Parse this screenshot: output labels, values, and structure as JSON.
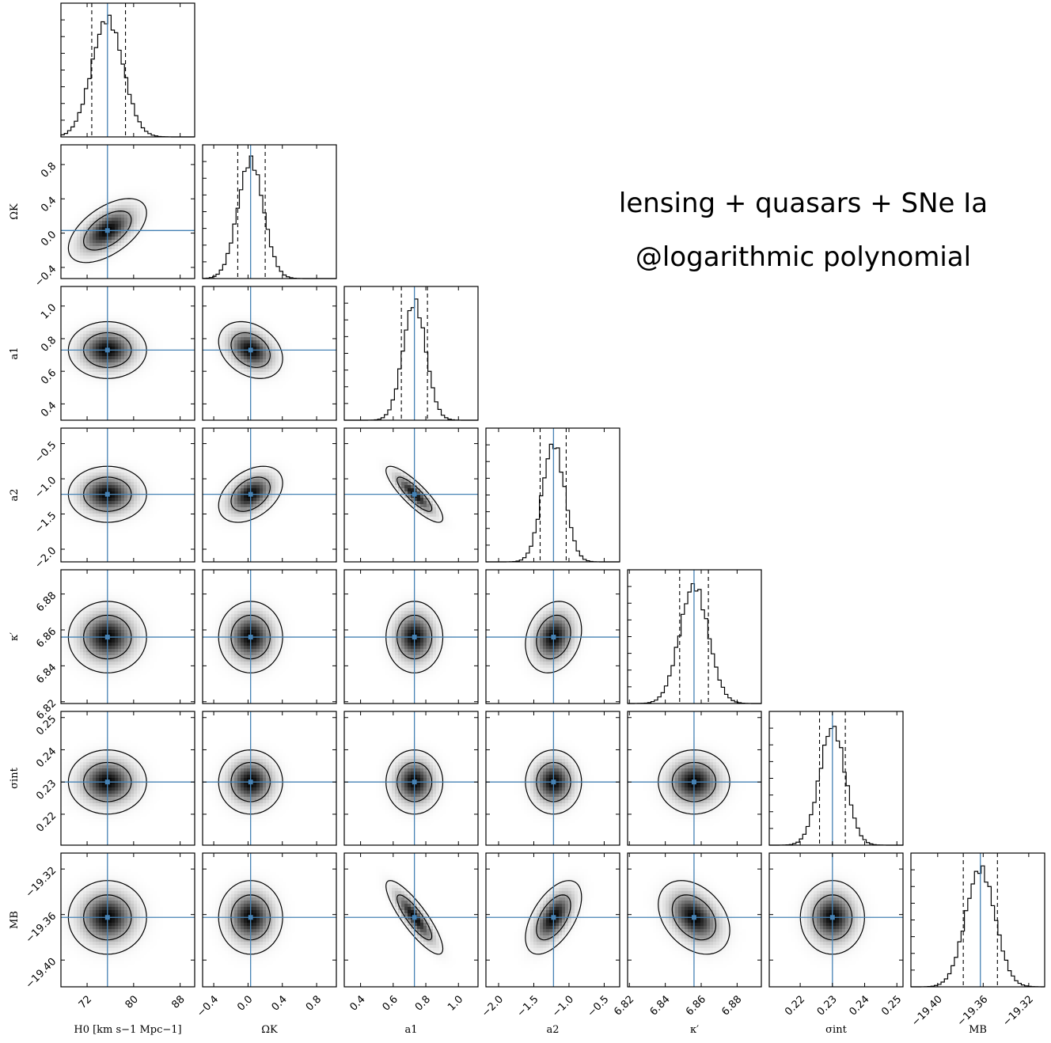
{
  "chart_data": {
    "type": "corner",
    "annotation": [
      "lensing + quasars + SNe Ia",
      "@logarithmic polynomial"
    ],
    "colors": {
      "truth": "#4682b4",
      "frame": "#000000",
      "density": "#000000"
    },
    "grid": false,
    "parameters": [
      {
        "label": "H0  [km  s−1  Mpc−1]",
        "range": [
          67.5,
          90.5
        ],
        "ticks": [
          72,
          80,
          88
        ],
        "tick_labels": [
          "72",
          "80",
          "88"
        ],
        "best_fit": 75.5,
        "sigma": 2.7,
        "ci": [
          72.8,
          78.6
        ]
      },
      {
        "label": "ΩK",
        "range": [
          -0.53,
          1.03
        ],
        "ticks": [
          -0.4,
          0.0,
          0.4,
          0.8
        ],
        "tick_labels": [
          "−0.4",
          "0.0",
          "0.4",
          "0.8"
        ],
        "best_fit": 0.03,
        "sigma": 0.15,
        "ci": [
          -0.12,
          0.2
        ]
      },
      {
        "label": "a1",
        "range": [
          0.3,
          1.12
        ],
        "ticks": [
          0.4,
          0.6,
          0.8,
          1.0
        ],
        "tick_labels": [
          "0.4",
          "0.6",
          "0.8",
          "1.0"
        ],
        "best_fit": 0.73,
        "sigma": 0.07,
        "ci": [
          0.65,
          0.81
        ]
      },
      {
        "label": "a2",
        "range": [
          -2.18,
          -0.28
        ],
        "ticks": [
          -2.0,
          -1.5,
          -1.0,
          -0.5
        ],
        "tick_labels": [
          "−2.0",
          "−1.5",
          "−1.0",
          "−0.5"
        ],
        "best_fit": -1.22,
        "sigma": 0.16,
        "ci": [
          -1.41,
          -1.04
        ]
      },
      {
        "label": "κ′",
        "range": [
          6.819,
          6.8935
        ],
        "ticks": [
          6.82,
          6.84,
          6.86,
          6.88
        ],
        "tick_labels": [
          "6.82",
          "6.84",
          "6.86",
          "6.88"
        ],
        "best_fit": 6.856,
        "sigma": 0.008,
        "ci": [
          6.848,
          6.864
        ]
      },
      {
        "label": "σint",
        "range": [
          0.2104,
          0.2519
        ],
        "ticks": [
          0.22,
          0.23,
          0.24,
          0.25
        ],
        "tick_labels": [
          "0.22",
          "0.23",
          "0.24",
          "0.25"
        ],
        "best_fit": 0.23,
        "sigma": 0.004,
        "ci": [
          0.226,
          0.234
        ]
      },
      {
        "label": "MB",
        "range": [
          -19.4235,
          -19.306
        ],
        "ticks": [
          -19.4,
          -19.36,
          -19.32
        ],
        "tick_labels": [
          "−19.40",
          "−19.36",
          "−19.32"
        ],
        "best_fit": -19.3625,
        "sigma": 0.013,
        "ci": [
          -19.3775,
          -19.3475
        ]
      }
    ],
    "correlations": [
      [
        1,
        0.55,
        0,
        0,
        0,
        0,
        0
      ],
      [
        0.55,
        1,
        -0.3,
        0.4,
        0,
        0,
        0
      ],
      [
        0,
        -0.3,
        1,
        -0.85,
        0,
        0,
        -0.85
      ],
      [
        0,
        0.4,
        -0.85,
        1,
        0.2,
        0,
        0.55
      ],
      [
        0,
        0,
        0,
        0.2,
        1,
        0,
        -0.35
      ],
      [
        0,
        0,
        0,
        0,
        0,
        1,
        0
      ],
      [
        0,
        0,
        -0.85,
        0.55,
        -0.35,
        0,
        1
      ]
    ]
  }
}
